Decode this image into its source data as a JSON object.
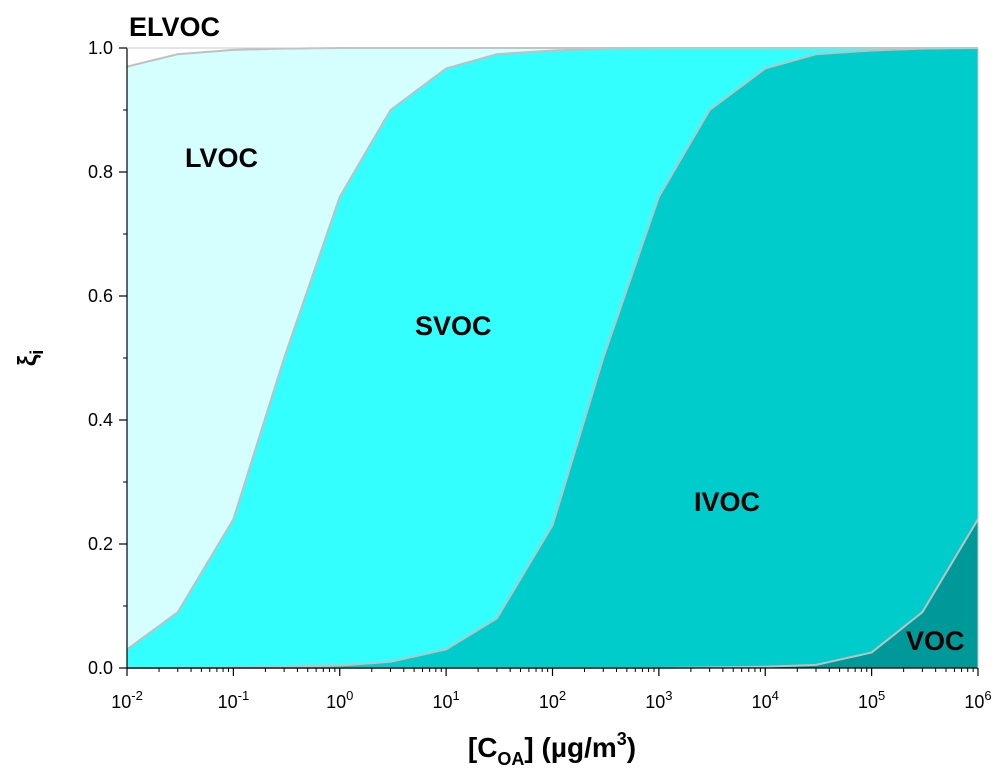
{
  "chart_data": {
    "type": "area",
    "stacked": true,
    "xscale": "log",
    "xlim": [
      0.01,
      1000000
    ],
    "ylim": [
      0,
      1
    ],
    "xlabel": {
      "main": "[C",
      "sub": "OA",
      "rest": "] (µg/m",
      "sup": "3",
      "end": ")"
    },
    "ylabel": {
      "main": "ξ",
      "sub": "i"
    },
    "x_ticks": [
      {
        "base": "10",
        "exp": "-2"
      },
      {
        "base": "10",
        "exp": "-1"
      },
      {
        "base": "10",
        "exp": "0"
      },
      {
        "base": "10",
        "exp": "1"
      },
      {
        "base": "10",
        "exp": "2"
      },
      {
        "base": "10",
        "exp": "3"
      },
      {
        "base": "10",
        "exp": "4"
      },
      {
        "base": "10",
        "exp": "5"
      },
      {
        "base": "10",
        "exp": "6"
      }
    ],
    "y_ticks": [
      "0.0",
      "0.2",
      "0.4",
      "0.6",
      "0.8",
      "1.0"
    ],
    "x": [
      0.01,
      0.03,
      0.1,
      0.3,
      1,
      3,
      10,
      30,
      100,
      300,
      1000,
      3000,
      10000,
      30000,
      100000,
      300000,
      1000000
    ],
    "boundaries": [
      {
        "name": "ELVOC",
        "values": [
          0.97,
          0.99,
          0.997,
          0.999,
          1.0,
          1.0,
          1.0,
          1.0,
          1.0,
          1.0,
          1.0,
          1.0,
          1.0,
          1.0,
          1.0,
          1.0,
          1.0
        ]
      },
      {
        "name": "LVOC",
        "values": [
          0.03,
          0.09,
          0.24,
          0.5,
          0.76,
          0.9,
          0.967,
          0.99,
          0.996,
          0.999,
          1.0,
          1.0,
          1.0,
          1.0,
          1.0,
          1.0,
          1.0
        ]
      },
      {
        "name": "SVOC",
        "values": [
          0.0,
          0.0,
          0.001,
          0.002,
          0.004,
          0.01,
          0.03,
          0.08,
          0.23,
          0.5,
          0.76,
          0.9,
          0.967,
          0.99,
          0.996,
          0.999,
          1.0
        ]
      },
      {
        "name": "IVOC",
        "values": [
          0.0,
          0.0,
          0.0,
          0.0,
          0.0,
          0.0,
          0.0,
          0.0,
          0.0,
          0.0,
          0.0,
          0.001,
          0.002,
          0.005,
          0.025,
          0.09,
          0.24
        ]
      }
    ],
    "regions": [
      {
        "label": "ELVOC",
        "color": "#ffffff"
      },
      {
        "label": "LVOC",
        "color": "#d5ffff"
      },
      {
        "label": "SVOC",
        "color": "#33ffff"
      },
      {
        "label": "IVOC",
        "color": "#00cccc"
      },
      {
        "label": "VOC",
        "color": "#009999"
      }
    ],
    "grid": false,
    "legend": "none"
  }
}
